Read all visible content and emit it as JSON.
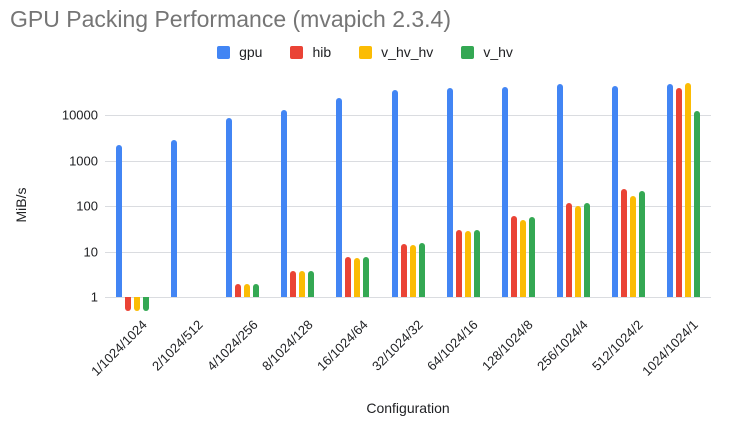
{
  "chart_data": {
    "type": "bar",
    "title": "GPU Packing Performance (mvapich 2.3.4)",
    "xlabel": "Configuration",
    "ylabel": "MiB/s",
    "yscale": "log",
    "yticks": [
      1,
      10,
      100,
      1000,
      10000
    ],
    "ylim": [
      0.45,
      65000
    ],
    "grid": true,
    "legend_position": "top",
    "categories": [
      "1/1024/1024",
      "2/1024/512",
      "4/1024/256",
      "8/1024/128",
      "16/1024/64",
      "32/1024/32",
      "64/1024/16",
      "128/1024/8",
      "256/1024/4",
      "512/1024/2",
      "1024/1024/1"
    ],
    "series": [
      {
        "name": "gpu",
        "color": "#4285F4",
        "values": [
          2200,
          2800,
          8800,
          13000,
          24000,
          37000,
          40000,
          43000,
          49000,
          44000,
          50000
        ]
      },
      {
        "name": "hib",
        "color": "#EA4335",
        "values": [
          0.5,
          null,
          1.9,
          3.8,
          7.5,
          15,
          30,
          60,
          120,
          240,
          40000
        ]
      },
      {
        "name": "v_hv_hv",
        "color": "#FBBC04",
        "values": [
          0.5,
          null,
          1.9,
          3.8,
          7.3,
          14,
          28,
          50,
          100,
          165,
          51000
        ]
      },
      {
        "name": "v_hv",
        "color": "#34A853",
        "values": [
          0.5,
          null,
          1.9,
          3.8,
          7.5,
          15.5,
          30,
          58,
          120,
          220,
          12500
        ]
      }
    ]
  },
  "colors": {
    "title_text": "#757575",
    "axis_text": "#202124",
    "gridline": "#dadce0",
    "background": "#ffffff"
  }
}
